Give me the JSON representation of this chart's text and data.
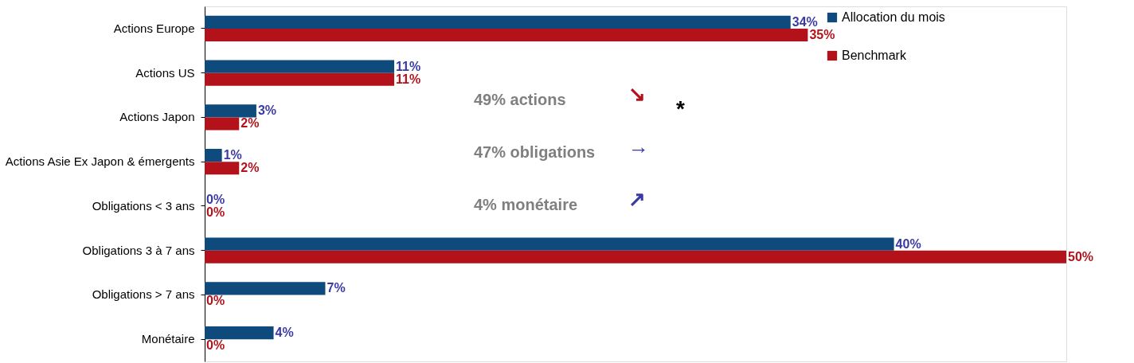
{
  "chart_data": {
    "type": "bar",
    "orientation": "horizontal",
    "categories": [
      "Actions Europe",
      "Actions US",
      "Actions Japon",
      "Actions Asie Ex Japon & émergents",
      "Obligations < 3 ans",
      "Obligations 3 à 7 ans",
      "Obligations > 7 ans",
      "Monétaire"
    ],
    "series": [
      {
        "name": "Allocation du mois",
        "color": "#0e4a7c",
        "values": [
          34,
          11,
          3,
          1,
          0,
          40,
          7,
          4
        ],
        "value_labels": [
          "34%",
          "11%",
          "3%",
          "1%",
          "0%",
          "40%",
          "7%",
          "4%"
        ]
      },
      {
        "name": "Benchmark",
        "color": "#b3121b",
        "values": [
          35,
          11,
          2,
          2,
          0,
          50,
          0,
          0
        ],
        "value_labels": [
          "35%",
          "11%",
          "2%",
          "2%",
          "0%",
          "50%",
          "0%",
          "0%"
        ]
      }
    ],
    "legend": "top right",
    "annotations": [
      "49% actions",
      "47% obligations",
      "4%  monétaire",
      "↘",
      "→",
      "↗",
      "*"
    ]
  }
}
